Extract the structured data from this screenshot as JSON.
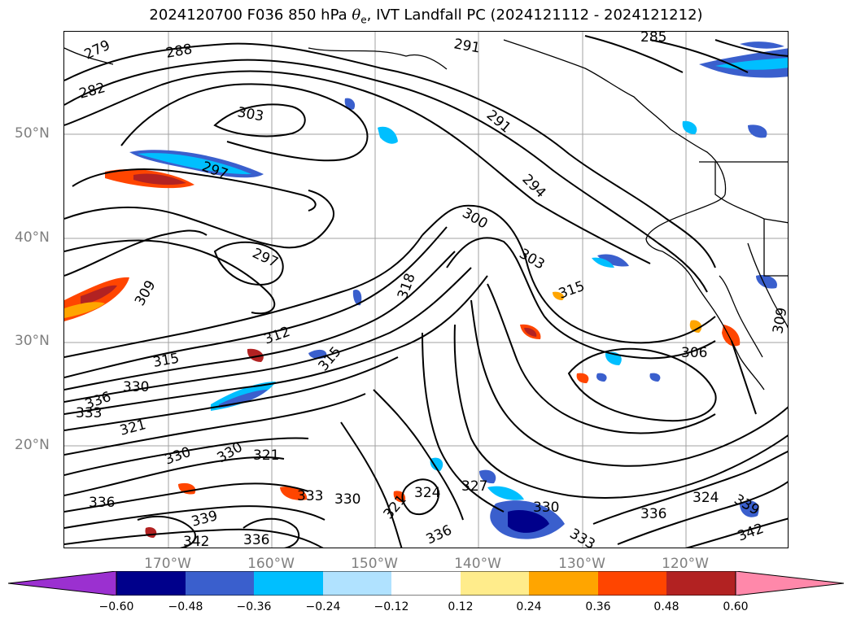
{
  "title": {
    "prefix": "2024120700 F036 850 hPa ",
    "theta": "θ",
    "sub": "e",
    "suffix": ", IVT Landfall PC (2024121112 - 2024121212)"
  },
  "axes": {
    "lat_labels": [
      "50°N",
      "40°N",
      "30°N",
      "20°N"
    ],
    "lon_labels": [
      "170°W",
      "160°W",
      "150°W",
      "140°W",
      "130°W",
      "120°W"
    ]
  },
  "contour_labels": [
    "279",
    "282",
    "285",
    "288",
    "291",
    "294",
    "297",
    "300",
    "303",
    "306",
    "309",
    "312",
    "315",
    "318",
    "321",
    "324",
    "327",
    "330",
    "333",
    "336",
    "339",
    "342"
  ],
  "colorbar": {
    "ticks": [
      "−0.60",
      "−0.48",
      "−0.36",
      "−0.24",
      "−0.12",
      "0.12",
      "0.24",
      "0.36",
      "0.48",
      "0.60"
    ],
    "colors": {
      "under": "#9b30d0",
      "b1": "#00008b",
      "b2": "#3a5fcd",
      "b3": "#00bfff",
      "b4": "#b0e2ff",
      "b5": "#ffffff",
      "b6": "#ffec8b",
      "b7": "#ffa500",
      "b8": "#ff4500",
      "b9": "#b22222",
      "over": "#ff88aa"
    }
  }
}
